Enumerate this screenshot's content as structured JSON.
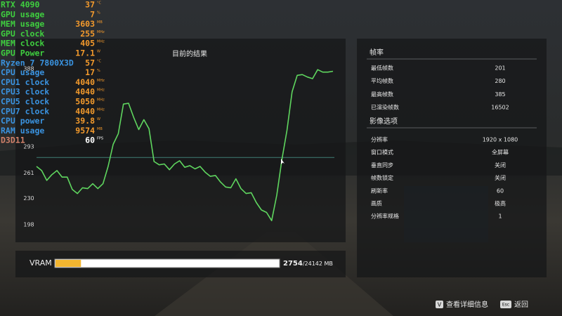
{
  "overlay": [
    {
      "label": "RTX 4090",
      "value": "37",
      "unit": "°C",
      "label_color": "#3fcf3f",
      "value_color": "#f39a2c"
    },
    {
      "label": "GPU usage",
      "value": "7",
      "unit": "%",
      "label_color": "#3fcf3f",
      "value_color": "#f39a2c"
    },
    {
      "label": "MEM usage",
      "value": "3603",
      "unit": "MB",
      "label_color": "#3fcf3f",
      "value_color": "#f39a2c"
    },
    {
      "label": "GPU clock",
      "value": "255",
      "unit": "MHz",
      "label_color": "#3fcf3f",
      "value_color": "#f39a2c"
    },
    {
      "label": "MEM clock",
      "value": "405",
      "unit": "MHz",
      "label_color": "#3fcf3f",
      "value_color": "#f39a2c"
    },
    {
      "label": "GPU Power",
      "value": "17.1",
      "unit": "W",
      "label_color": "#3fcf3f",
      "value_color": "#f39a2c"
    },
    {
      "label": "Ryzen 7 7800X3D",
      "value": "57",
      "unit": "°C",
      "label_color": "#3a93e0",
      "value_color": "#f39a2c"
    },
    {
      "label": "CPU usage",
      "value": "17",
      "unit": "%",
      "label_color": "#3a93e0",
      "value_color": "#f39a2c"
    },
    {
      "label": "CPU1 clock",
      "value": "4040",
      "unit": "MHz",
      "label_color": "#3a93e0",
      "value_color": "#f39a2c"
    },
    {
      "label": "CPU3 clock",
      "value": "4040",
      "unit": "MHz",
      "label_color": "#3a93e0",
      "value_color": "#f39a2c"
    },
    {
      "label": "CPU5 clock",
      "value": "5050",
      "unit": "MHz",
      "label_color": "#3a93e0",
      "value_color": "#f39a2c"
    },
    {
      "label": "CPU7 clock",
      "value": "4040",
      "unit": "MHz",
      "label_color": "#3a93e0",
      "value_color": "#f39a2c"
    },
    {
      "label": "CPU power",
      "value": "39.8",
      "unit": "W",
      "label_color": "#3a93e0",
      "value_color": "#f39a2c"
    },
    {
      "label": "RAM usage",
      "value": "9574",
      "unit": "MB",
      "label_color": "#3a93e0",
      "value_color": "#f39a2c"
    },
    {
      "label": "D3D11",
      "value": "60",
      "unit": "FPS",
      "label_color": "#d3826a",
      "value_color": "#ffffff"
    }
  ],
  "graph": {
    "title": "目前的结果",
    "ylim": [
      198,
      388
    ],
    "yticks": [
      198,
      230,
      261,
      293,
      388
    ],
    "color": "#5fd65f",
    "values": [
      269,
      264,
      252,
      259,
      264,
      256,
      256,
      241,
      236,
      243,
      242,
      248,
      242,
      248,
      269,
      296,
      309,
      345,
      346,
      329,
      314,
      326,
      315,
      275,
      271,
      272,
      265,
      272,
      276,
      268,
      270,
      266,
      269,
      262,
      257,
      258,
      250,
      244,
      243,
      254,
      242,
      236,
      237,
      225,
      216,
      213,
      203,
      234,
      277,
      313,
      360,
      380,
      381,
      378,
      376,
      387,
      384,
      384,
      385
    ]
  },
  "vram": {
    "label": "VRAM",
    "used": 2754,
    "total": 24142,
    "total_label": "/24142 MB",
    "color": "#f2b530"
  },
  "framerate": {
    "title": "帧率",
    "rows": [
      {
        "label": "最低帧数",
        "value": 201
      },
      {
        "label": "平均帧数",
        "value": 280
      },
      {
        "label": "最高帧数",
        "value": 385
      },
      {
        "label": "已渲染帧数",
        "value": 16502
      }
    ]
  },
  "video": {
    "title": "影像选项",
    "rows": [
      {
        "label": "分辨率",
        "value": "1920 x 1080"
      },
      {
        "label": "窗口模式",
        "value": "全屏幕"
      },
      {
        "label": "垂直同步",
        "value": "关闭"
      },
      {
        "label": "帧数锁定",
        "value": "关闭"
      },
      {
        "label": "刷新率",
        "value": "60"
      },
      {
        "label": "画质",
        "value": "极高"
      },
      {
        "label": "分辨率规格",
        "value": "1"
      }
    ]
  },
  "footer": [
    {
      "key": "V",
      "label": "查看详细信息"
    },
    {
      "key": "Esc",
      "label": "返回"
    }
  ]
}
